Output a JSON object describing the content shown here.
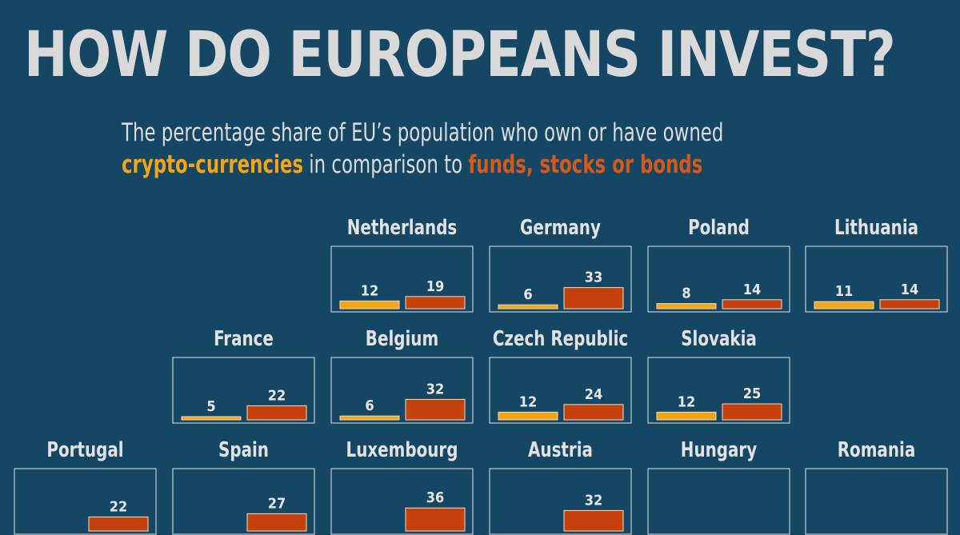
{
  "title": "HOW DO EUROPEANS INVEST?",
  "subtitle": {
    "line1": "The percentage share of EU’s population who own or have owned",
    "crypto": "crypto-currencies",
    "middle": "in comparison to",
    "funds": "funds, stocks or bonds"
  },
  "colors": {
    "background": "#154663",
    "crypto": "#f2a516",
    "funds": "#c4400c",
    "panel_border": "#e6e6e6"
  },
  "chart_data": {
    "type": "bar",
    "series": [
      "crypto-currencies",
      "funds, stocks or bonds"
    ],
    "ylim": [
      0,
      100
    ],
    "countries": [
      {
        "name": "Netherlands",
        "crypto": 12,
        "funds": 19
      },
      {
        "name": "Germany",
        "crypto": 6,
        "funds": 33
      },
      {
        "name": "Poland",
        "crypto": 8,
        "funds": 14
      },
      {
        "name": "Lithuania",
        "crypto": 11,
        "funds": 14
      },
      {
        "name": "France",
        "crypto": 5,
        "funds": 22
      },
      {
        "name": "Belgium",
        "crypto": 6,
        "funds": 32
      },
      {
        "name": "Czech Republic",
        "crypto": 12,
        "funds": 24
      },
      {
        "name": "Slovakia",
        "crypto": 12,
        "funds": 25
      },
      {
        "name": "Portugal",
        "crypto": null,
        "funds": 22
      },
      {
        "name": "Spain",
        "crypto": null,
        "funds": 27
      },
      {
        "name": "Luxembourg",
        "crypto": null,
        "funds": 36
      },
      {
        "name": "Austria",
        "crypto": null,
        "funds": 32
      },
      {
        "name": "Hungary",
        "crypto": null,
        "funds": null
      },
      {
        "name": "Romania",
        "crypto": null,
        "funds": null
      }
    ]
  }
}
